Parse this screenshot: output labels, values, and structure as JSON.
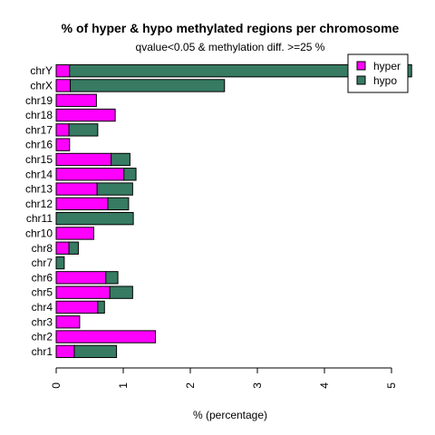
{
  "chart_data": {
    "type": "bar",
    "orientation": "horizontal",
    "stacked": true,
    "title": "% of hyper & hypo methylated regions per chromosome",
    "subtitle": "qvalue<0.05 & methylation diff. >=25 %",
    "xlabel": "% (percentage)",
    "ylabel": "",
    "xlim": [
      0,
      5
    ],
    "x_ticks": [
      0,
      1,
      2,
      3,
      4,
      5
    ],
    "categories": [
      "chr1",
      "chr2",
      "chr3",
      "chr4",
      "chr5",
      "chr6",
      "chr7",
      "chr8",
      "chr10",
      "chr11",
      "chr12",
      "chr13",
      "chr14",
      "chr15",
      "chr16",
      "chr17",
      "chr18",
      "chr19",
      "chrX",
      "chrY"
    ],
    "series": [
      {
        "name": "hyper",
        "color": "#ff00ff",
        "values": [
          0.27,
          1.48,
          0.35,
          0.62,
          0.8,
          0.74,
          0.0,
          0.19,
          0.56,
          0.0,
          0.77,
          0.61,
          1.01,
          0.82,
          0.2,
          0.19,
          0.88,
          0.6,
          0.21,
          0.2
        ]
      },
      {
        "name": "hypo",
        "color": "#377b63",
        "values": [
          0.63,
          0.0,
          0.0,
          0.1,
          0.34,
          0.18,
          0.12,
          0.14,
          0.0,
          1.15,
          0.31,
          0.53,
          0.18,
          0.28,
          0.0,
          0.43,
          0.0,
          0.0,
          2.3,
          5.1
        ]
      }
    ],
    "legend_position": "top-right",
    "grid": false
  }
}
